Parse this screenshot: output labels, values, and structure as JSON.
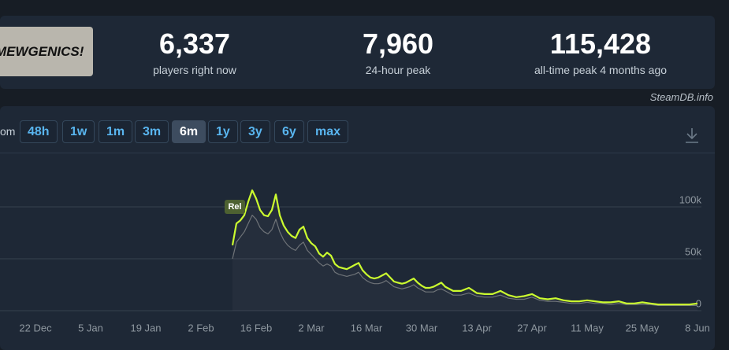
{
  "header": {
    "logo_text": "MEWGENICS!",
    "stats": [
      {
        "value": "6,337",
        "label": "players right now"
      },
      {
        "value": "7,960",
        "label": "24-hour peak"
      },
      {
        "value": "115,428",
        "label": "all-time peak 4 months ago"
      }
    ],
    "credit": "SteamDB.info"
  },
  "controls": {
    "zoom_label": "om",
    "ranges": [
      "48h",
      "1w",
      "1m",
      "3m",
      "6m",
      "1y",
      "3y",
      "6y",
      "max"
    ],
    "active_range": "6m"
  },
  "chart_data": {
    "type": "line",
    "x": [
      "10 Feb",
      "11 Feb",
      "12 Feb",
      "13 Feb",
      "14 Feb",
      "15 Feb",
      "16 Feb",
      "17 Feb",
      "18 Feb",
      "19 Feb",
      "20 Feb",
      "21 Feb",
      "22 Feb",
      "23 Feb",
      "24 Feb",
      "25 Feb",
      "26 Feb",
      "27 Feb",
      "28 Feb",
      "1 Mar",
      "2 Mar",
      "3 Mar",
      "4 Mar",
      "5 Mar",
      "6 Mar",
      "7 Mar",
      "8 Mar",
      "9 Mar",
      "10 Mar",
      "11 Mar",
      "12 Mar",
      "13 Mar",
      "14 Mar",
      "15 Mar",
      "16 Mar",
      "17 Mar",
      "18 Mar",
      "19 Mar",
      "20 Mar",
      "21 Mar",
      "22 Mar",
      "23 Mar",
      "24 Mar",
      "25 Mar",
      "26 Mar",
      "27 Mar",
      "28 Mar",
      "29 Mar",
      "30 Mar",
      "31 Mar",
      "1 Apr",
      "2 Apr",
      "3 Apr",
      "4 Apr",
      "5 Apr",
      "7 Apr",
      "9 Apr",
      "11 Apr",
      "13 Apr",
      "15 Apr",
      "17 Apr",
      "19 Apr",
      "21 Apr",
      "23 Apr",
      "25 Apr",
      "27 Apr",
      "29 Apr",
      "1 May",
      "3 May",
      "5 May",
      "7 May",
      "9 May",
      "11 May",
      "13 May",
      "15 May",
      "17 May",
      "19 May",
      "21 May",
      "23 May",
      "25 May",
      "27 May",
      "29 May",
      "31 May",
      "2 Jun",
      "4 Jun",
      "6 Jun",
      "8 Jun"
    ],
    "series": [
      {
        "color": "#6b6f74",
        "values": [
          50000,
          66000,
          71000,
          76000,
          84000,
          92000,
          88000,
          80000,
          76000,
          74000,
          78000,
          88000,
          76000,
          68000,
          63000,
          60000,
          58000,
          63000,
          66000,
          58000,
          54000,
          50000,
          46000,
          43000,
          45000,
          43000,
          37000,
          35000,
          34000,
          33000,
          34000,
          35000,
          37000,
          32000,
          29000,
          27000,
          26000,
          26000,
          27000,
          29000,
          26000,
          23000,
          22000,
          21000,
          22000,
          23000,
          25000,
          22000,
          20000,
          18000,
          18000,
          18000,
          20000,
          21000,
          19000,
          15000,
          15000,
          17000,
          14000,
          13000,
          13000,
          15000,
          12000,
          11000,
          11000,
          13000,
          10000,
          9000,
          9000,
          8000,
          7000,
          7000,
          8000,
          7000,
          7000,
          6000,
          7000,
          6000,
          6000,
          6000,
          6000,
          5000,
          5000,
          5000,
          5000,
          5000,
          5000
        ]
      },
      {
        "color": "#cbfb2f",
        "values": [
          63000,
          84000,
          87000,
          92000,
          105000,
          116000,
          108000,
          97000,
          92000,
          91000,
          97000,
          112000,
          92000,
          82000,
          76000,
          72000,
          70000,
          78000,
          81000,
          70000,
          65000,
          62000,
          55000,
          52000,
          56000,
          53000,
          45000,
          42000,
          41000,
          40000,
          42000,
          44000,
          46000,
          39000,
          35000,
          32000,
          31000,
          32000,
          34000,
          36000,
          32000,
          28000,
          27000,
          26000,
          27000,
          29000,
          31000,
          27000,
          24000,
          22000,
          22000,
          23000,
          25000,
          27000,
          23000,
          19000,
          19000,
          22000,
          17000,
          16000,
          16000,
          19000,
          15000,
          13000,
          14000,
          16000,
          12000,
          11000,
          12000,
          10000,
          9000,
          9000,
          10000,
          9000,
          8000,
          8000,
          9000,
          7000,
          7000,
          8000,
          7000,
          6000,
          6000,
          6000,
          6000,
          6000,
          7000
        ]
      }
    ],
    "xlim": [
      "13 Dec",
      "9 Jun"
    ],
    "xticks": [
      "22 Dec",
      "5 Jan",
      "19 Jan",
      "2 Feb",
      "16 Feb",
      "2 Mar",
      "16 Mar",
      "30 Mar",
      "13 Apr",
      "27 Apr",
      "11 May",
      "25 May",
      "8 Jun"
    ],
    "ylim": [
      0,
      150000
    ],
    "yticks": [
      0,
      {
        "value": 50000,
        "label": "50k"
      },
      {
        "value": 100000,
        "label": "100k"
      }
    ],
    "grid": true,
    "annotations": [
      {
        "label": "Rel",
        "x": "10 Feb"
      }
    ]
  }
}
